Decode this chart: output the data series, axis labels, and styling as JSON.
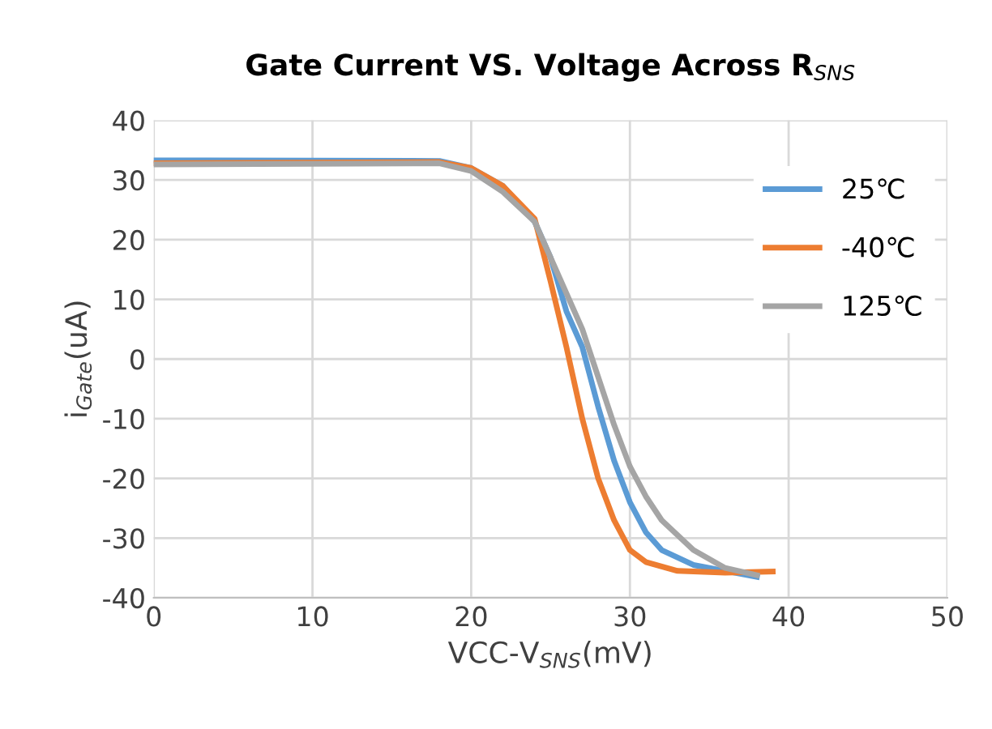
{
  "chart_data": {
    "type": "line",
    "title": "Gate Current VS. Voltage Across R$_{SNS}$",
    "xlabel": "VCC-V$_{SNS}$(mV)",
    "ylabel": "i$_{Gate}$(uA)",
    "xlim": [
      0,
      50
    ],
    "xticks": [
      0,
      10,
      20,
      30,
      40,
      50
    ],
    "ylim": [
      -40,
      40
    ],
    "yticks": [
      -40,
      -30,
      -20,
      -10,
      0,
      10,
      20,
      30,
      40
    ],
    "grid": true,
    "legend": "top right",
    "marker": "none",
    "line_style": "solid",
    "series": [
      {
        "name": "25℃",
        "color": "#5b9bd5",
        "x": [
          0,
          18,
          20,
          22,
          24,
          25,
          26,
          27,
          28,
          29,
          30,
          31,
          32,
          34,
          36,
          38
        ],
        "values": [
          33.3,
          33.2,
          32,
          29,
          23,
          17,
          8,
          2,
          -8,
          -17,
          -24,
          -29,
          -32,
          -34.5,
          -35.5,
          -36.5
        ]
      },
      {
        "name": "-40℃",
        "color": "#ed7d31",
        "x": [
          0,
          18,
          20,
          22,
          24,
          25,
          26,
          27,
          28,
          29,
          30,
          31,
          33,
          36,
          39
        ],
        "values": [
          32.8,
          33,
          32,
          29,
          23.5,
          13,
          2,
          -10,
          -20,
          -27,
          -32,
          -34,
          -35.5,
          -35.8,
          -35.6
        ]
      },
      {
        "name": "125℃",
        "color": "#a5a5a5",
        "x": [
          0,
          18,
          20,
          22,
          24,
          25,
          26,
          27,
          28,
          29,
          30,
          31,
          32,
          34,
          36,
          38
        ],
        "values": [
          32.6,
          32.8,
          31.5,
          28,
          23,
          17,
          11,
          5,
          -3,
          -11,
          -18,
          -23,
          -27,
          -32,
          -35,
          -36.2
        ]
      }
    ]
  }
}
